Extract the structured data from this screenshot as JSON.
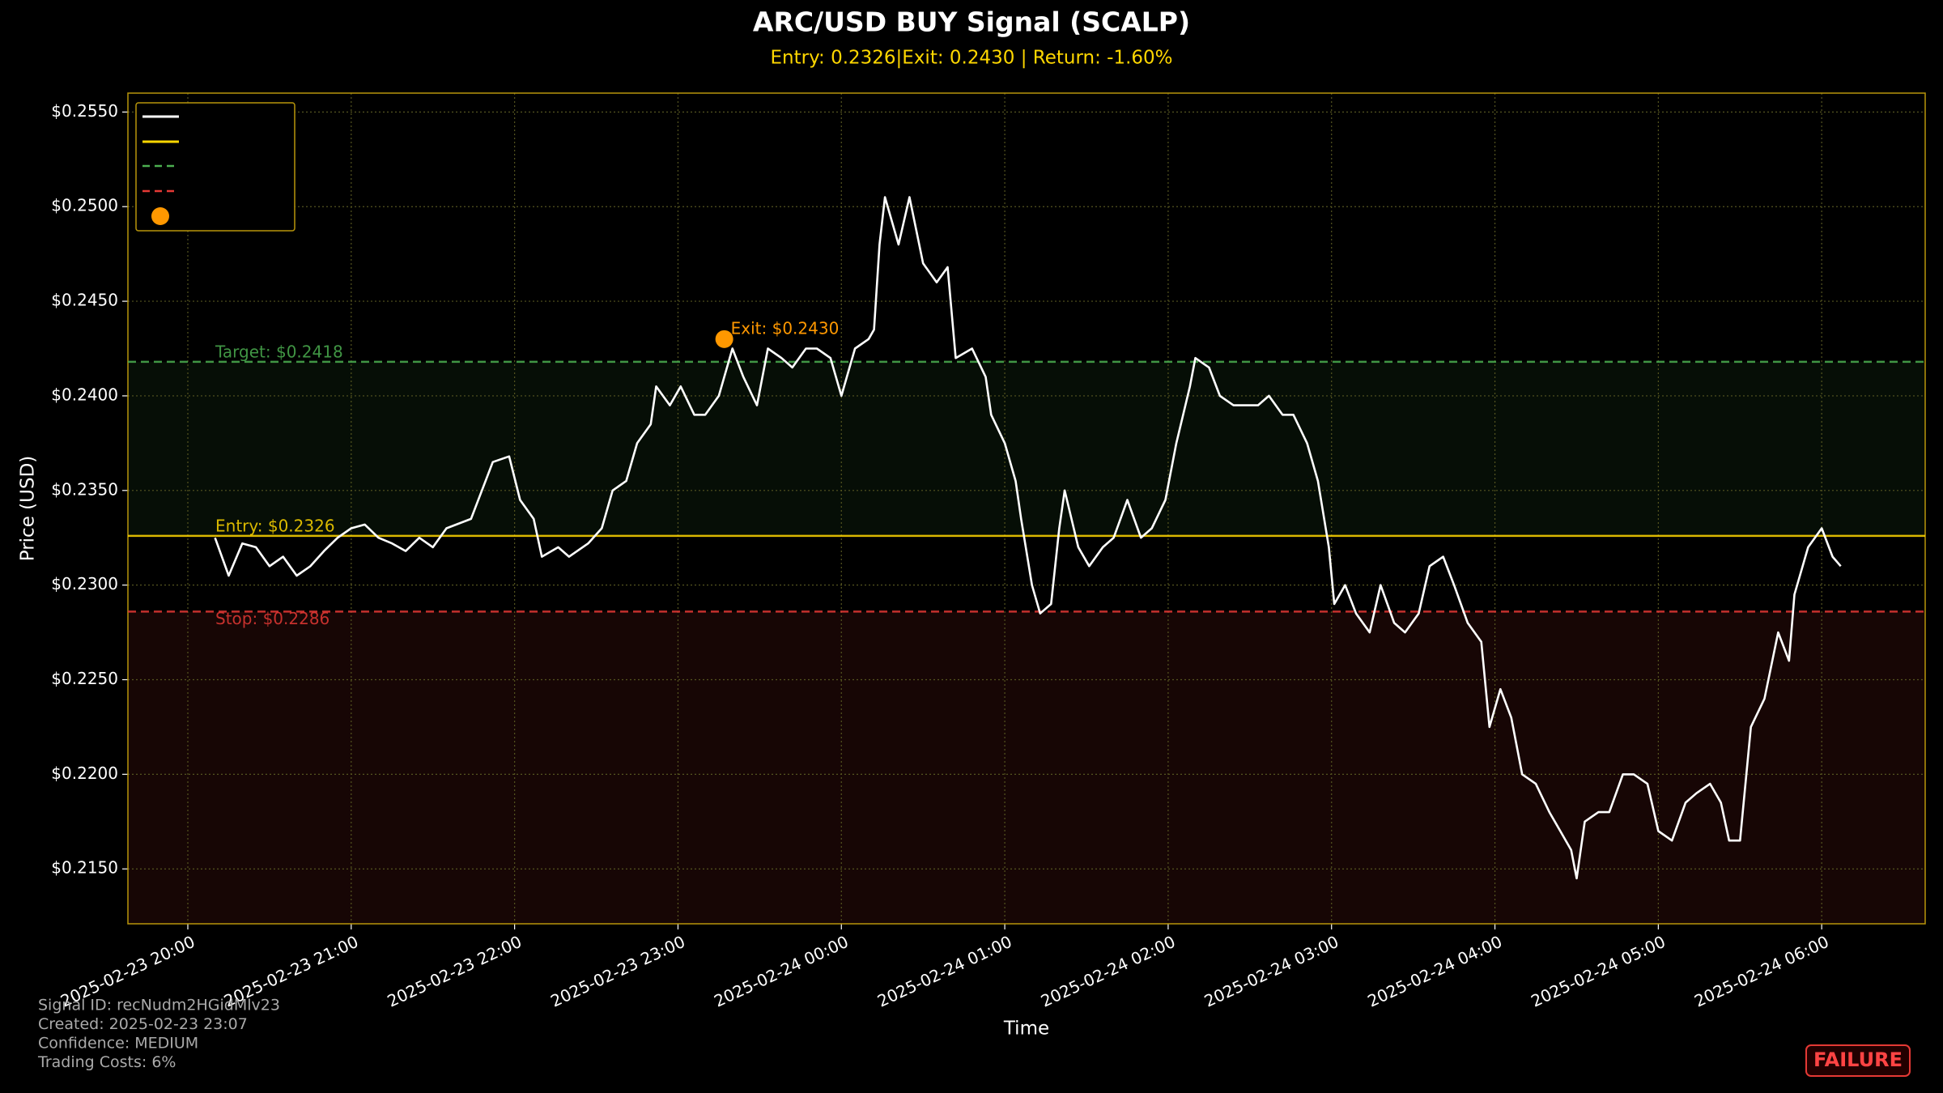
{
  "chart_data": {
    "type": "line",
    "title": "ARC/USD BUY Signal (SCALP)",
    "subtitle": "Entry: 0.2326|Exit: 0.2430 | Return: -1.60%",
    "x_label": "Time",
    "y_label": "Price (USD)",
    "x": [
      "2025-02-23 20:10",
      "2025-02-23 20:15",
      "2025-02-23 20:20",
      "2025-02-23 20:25",
      "2025-02-23 20:30",
      "2025-02-23 20:35",
      "2025-02-23 20:40",
      "2025-02-23 20:45",
      "2025-02-23 20:50",
      "2025-02-23 20:55",
      "2025-02-23 21:00",
      "2025-02-23 21:05",
      "2025-02-23 21:10",
      "2025-02-23 21:15",
      "2025-02-23 21:20",
      "2025-02-23 21:25",
      "2025-02-23 21:30",
      "2025-02-23 21:35",
      "2025-02-23 21:44",
      "2025-02-23 21:52",
      "2025-02-23 21:58",
      "2025-02-23 22:02",
      "2025-02-23 22:07",
      "2025-02-23 22:10",
      "2025-02-23 22:16",
      "2025-02-23 22:20",
      "2025-02-23 22:27",
      "2025-02-23 22:32",
      "2025-02-23 22:36",
      "2025-02-23 22:41",
      "2025-02-23 22:45",
      "2025-02-23 22:50",
      "2025-02-23 22:52",
      "2025-02-23 22:57",
      "2025-02-23 23:01",
      "2025-02-23 23:06",
      "2025-02-23 23:10",
      "2025-02-23 23:15",
      "2025-02-23 23:20",
      "2025-02-23 23:24",
      "2025-02-23 23:29",
      "2025-02-23 23:33",
      "2025-02-23 23:38",
      "2025-02-23 23:42",
      "2025-02-23 23:47",
      "2025-02-23 23:51",
      "2025-02-23 23:56",
      "2025-02-24 00:00",
      "2025-02-24 00:05",
      "2025-02-24 00:10",
      "2025-02-24 00:12",
      "2025-02-24 00:14",
      "2025-02-24 00:16",
      "2025-02-24 00:21",
      "2025-02-24 00:25",
      "2025-02-24 00:30",
      "2025-02-24 00:35",
      "2025-02-24 00:39",
      "2025-02-24 00:42",
      "2025-02-24 00:48",
      "2025-02-24 00:53",
      "2025-02-24 00:55",
      "2025-02-24 01:00",
      "2025-02-24 01:04",
      "2025-02-24 01:06",
      "2025-02-24 01:10",
      "2025-02-24 01:13",
      "2025-02-24 01:17",
      "2025-02-24 01:20",
      "2025-02-24 01:22",
      "2025-02-24 01:27",
      "2025-02-24 01:31",
      "2025-02-24 01:36",
      "2025-02-24 01:40",
      "2025-02-24 01:45",
      "2025-02-24 01:50",
      "2025-02-24 01:54",
      "2025-02-24 01:59",
      "2025-02-24 02:03",
      "2025-02-24 02:08",
      "2025-02-24 02:10",
      "2025-02-24 02:15",
      "2025-02-24 02:19",
      "2025-02-24 02:24",
      "2025-02-24 02:28",
      "2025-02-24 02:33",
      "2025-02-24 02:37",
      "2025-02-24 02:42",
      "2025-02-24 02:46",
      "2025-02-24 02:51",
      "2025-02-24 02:55",
      "2025-02-24 02:59",
      "2025-02-24 03:01",
      "2025-02-24 03:05",
      "2025-02-24 03:09",
      "2025-02-24 03:14",
      "2025-02-24 03:18",
      "2025-02-24 03:23",
      "2025-02-24 03:27",
      "2025-02-24 03:32",
      "2025-02-24 03:36",
      "2025-02-24 03:41",
      "2025-02-24 03:45",
      "2025-02-24 03:50",
      "2025-02-24 03:55",
      "2025-02-24 03:58",
      "2025-02-24 04:02",
      "2025-02-24 04:06",
      "2025-02-24 04:10",
      "2025-02-24 04:15",
      "2025-02-24 04:20",
      "2025-02-24 04:24",
      "2025-02-24 04:28",
      "2025-02-24 04:30",
      "2025-02-24 04:33",
      "2025-02-24 04:38",
      "2025-02-24 04:42",
      "2025-02-24 04:47",
      "2025-02-24 04:51",
      "2025-02-24 04:56",
      "2025-02-24 05:00",
      "2025-02-24 05:05",
      "2025-02-24 05:10",
      "2025-02-24 05:14",
      "2025-02-24 05:19",
      "2025-02-24 05:23",
      "2025-02-24 05:26",
      "2025-02-24 05:30",
      "2025-02-24 05:34",
      "2025-02-24 05:39",
      "2025-02-24 05:44",
      "2025-02-24 05:48",
      "2025-02-24 05:50",
      "2025-02-24 05:55",
      "2025-02-24 06:00",
      "2025-02-24 06:04",
      "2025-02-24 06:07"
    ],
    "series": [
      {
        "color": "#ffffff",
        "values": [
          0.2325,
          0.2305,
          0.2322,
          0.232,
          0.231,
          0.2315,
          0.2305,
          0.231,
          0.2318,
          0.2325,
          0.233,
          0.2332,
          0.2325,
          0.2322,
          0.2318,
          0.2325,
          0.232,
          0.233,
          0.2335,
          0.2365,
          0.2368,
          0.2345,
          0.2335,
          0.2315,
          0.232,
          0.2315,
          0.2322,
          0.233,
          0.235,
          0.2355,
          0.2375,
          0.2385,
          0.2405,
          0.2395,
          0.2405,
          0.239,
          0.239,
          0.24,
          0.2425,
          0.241,
          0.2395,
          0.2425,
          0.242,
          0.2415,
          0.2425,
          0.2425,
          0.242,
          0.24,
          0.2425,
          0.243,
          0.2435,
          0.248,
          0.2505,
          0.248,
          0.2505,
          0.247,
          0.246,
          0.2468,
          0.242,
          0.2425,
          0.241,
          0.239,
          0.2375,
          0.2355,
          0.2335,
          0.23,
          0.2285,
          0.229,
          0.233,
          0.235,
          0.232,
          0.231,
          0.232,
          0.2325,
          0.2345,
          0.2325,
          0.233,
          0.2345,
          0.2375,
          0.2405,
          0.242,
          0.2415,
          0.24,
          0.2395,
          0.2395,
          0.2395,
          0.24,
          0.239,
          0.239,
          0.2375,
          0.2355,
          0.232,
          0.229,
          0.23,
          0.2285,
          0.2275,
          0.23,
          0.228,
          0.2275,
          0.2285,
          0.231,
          0.2315,
          0.23,
          0.228,
          0.227,
          0.2225,
          0.2245,
          0.223,
          0.22,
          0.2195,
          0.218,
          0.217,
          0.216,
          0.2145,
          0.2175,
          0.218,
          0.218,
          0.22,
          0.22,
          0.2195,
          0.217,
          0.2165,
          0.2185,
          0.219,
          0.2195,
          0.2185,
          0.2165,
          0.2165,
          0.2225,
          0.224,
          0.2275,
          0.226,
          0.2295,
          0.232,
          0.233,
          0.2315,
          0.231
        ]
      }
    ],
    "xlim": [
      "2025-02-23 19:38",
      "2025-02-24 06:38"
    ],
    "xticks": [
      "2025-02-23 20:00",
      "2025-02-23 21:00",
      "2025-02-23 22:00",
      "2025-02-23 23:00",
      "2025-02-24 00:00",
      "2025-02-24 01:00",
      "2025-02-24 02:00",
      "2025-02-24 03:00",
      "2025-02-24 04:00",
      "2025-02-24 05:00",
      "2025-02-24 06:00"
    ],
    "ylim": [
      0.2121,
      0.256
    ],
    "yticks": [
      {
        "value": 0.215,
        "label": "$0.2150"
      },
      {
        "value": 0.22,
        "label": "$0.2200"
      },
      {
        "value": 0.225,
        "label": "$0.2250"
      },
      {
        "value": 0.23,
        "label": "$0.2300"
      },
      {
        "value": 0.235,
        "label": "$0.2350"
      },
      {
        "value": 0.24,
        "label": "$0.2400"
      },
      {
        "value": 0.245,
        "label": "$0.2450"
      },
      {
        "value": 0.25,
        "label": "$0.2500"
      },
      {
        "value": 0.255,
        "label": "$0.2550"
      }
    ],
    "grid": true,
    "levels": [
      {
        "value": 0.2418,
        "label": "Target: $0.2418",
        "color": "#4caf50",
        "dash": true
      },
      {
        "value": 0.2326,
        "label": "Entry: $0.2326",
        "color": "#ffd700",
        "dash": false
      },
      {
        "value": 0.2286,
        "label": "Stop: $0.2286",
        "color": "#e53935",
        "dash": true
      }
    ],
    "exit_point": {
      "x": "2025-02-23 23:17",
      "y": 0.243,
      "label": "Exit: $0.2430",
      "color": "#ff9800"
    },
    "info": [
      "Signal ID: recNudm2HGidMlv23",
      "Created: 2025-02-23 23:07",
      "Confidence: MEDIUM",
      "Trading Costs: 6%"
    ],
    "status": "FAILURE"
  }
}
